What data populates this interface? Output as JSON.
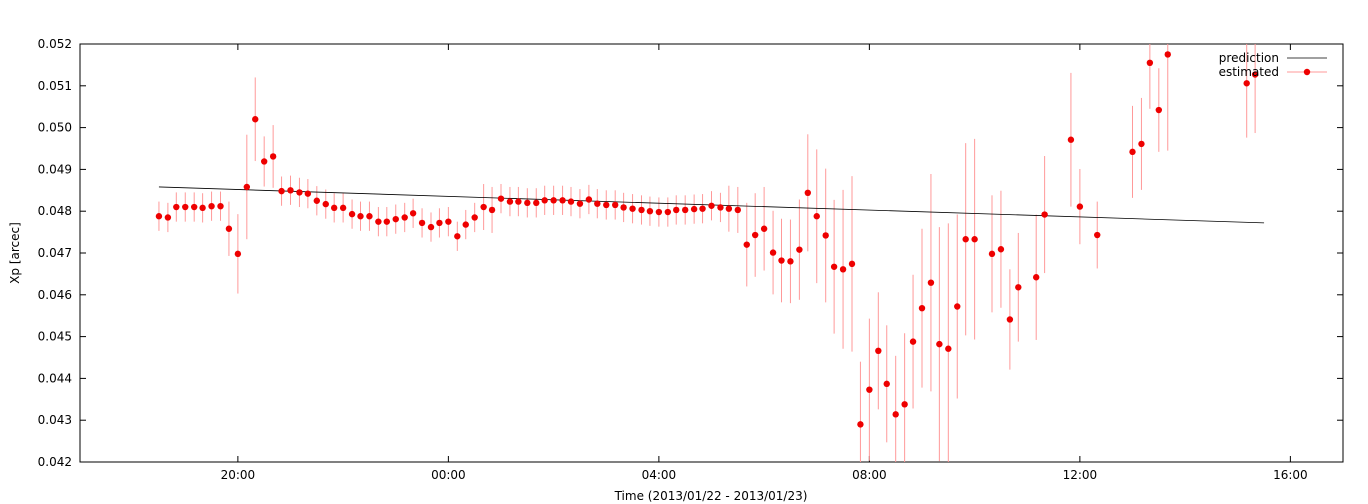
{
  "chart_data": {
    "type": "scatter",
    "title": "",
    "xlabel": "Time (2013/01/22 - 2013/01/23)",
    "ylabel": "Xp [arcec]",
    "x_units": "hours relative to 2013/01/23 00:00",
    "xlim": [
      -7.0,
      17.0
    ],
    "ylim": [
      0.042,
      0.052
    ],
    "x_ticks": [
      {
        "value": -4,
        "label": "20:00"
      },
      {
        "value": 0,
        "label": "00:00"
      },
      {
        "value": 4,
        "label": "04:00"
      },
      {
        "value": 8,
        "label": "08:00"
      },
      {
        "value": 12,
        "label": "12:00"
      },
      {
        "value": 16,
        "label": "16:00"
      }
    ],
    "y_ticks": [
      {
        "value": 0.042,
        "label": "0.042"
      },
      {
        "value": 0.043,
        "label": "0.043"
      },
      {
        "value": 0.044,
        "label": "0.044"
      },
      {
        "value": 0.045,
        "label": "0.045"
      },
      {
        "value": 0.046,
        "label": "0.046"
      },
      {
        "value": 0.047,
        "label": "0.047"
      },
      {
        "value": 0.048,
        "label": "0.048"
      },
      {
        "value": 0.049,
        "label": "0.049"
      },
      {
        "value": 0.05,
        "label": "0.050"
      },
      {
        "value": 0.051,
        "label": "0.051"
      },
      {
        "value": 0.052,
        "label": "0.052"
      }
    ],
    "grid": false,
    "legend": "top-right",
    "series": [
      {
        "name": "prediction",
        "style": "line",
        "color": "#000000",
        "x": [
          -5.5,
          15.5
        ],
        "y": [
          0.04858,
          0.04772
        ]
      },
      {
        "name": "estimated",
        "style": "points-errorbars",
        "color": "#ee0000",
        "errcolor": "#ff9999",
        "points": [
          [
            -5.5,
            0.04788,
            0.00035
          ],
          [
            -5.33,
            0.04785,
            0.00035
          ],
          [
            -5.17,
            0.0481,
            0.00035
          ],
          [
            -5.0,
            0.0481,
            0.00035
          ],
          [
            -4.83,
            0.0481,
            0.00035
          ],
          [
            -4.67,
            0.04808,
            0.00035
          ],
          [
            -4.5,
            0.04812,
            0.00035
          ],
          [
            -4.33,
            0.04812,
            0.00035
          ],
          [
            -4.17,
            0.04758,
            0.00065
          ],
          [
            -4.0,
            0.04698,
            0.00095
          ],
          [
            -3.83,
            0.04858,
            0.00125
          ],
          [
            -3.67,
            0.0502,
            0.001
          ],
          [
            -3.5,
            0.04919,
            0.0006
          ],
          [
            -3.33,
            0.04931,
            0.00075
          ],
          [
            -3.17,
            0.04848,
            0.00035
          ],
          [
            -3.0,
            0.0485,
            0.00035
          ],
          [
            -2.83,
            0.04845,
            0.00035
          ],
          [
            -2.67,
            0.04842,
            0.00035
          ],
          [
            -2.5,
            0.04825,
            0.00035
          ],
          [
            -2.33,
            0.04817,
            0.00035
          ],
          [
            -2.17,
            0.04808,
            0.00035
          ],
          [
            -2.0,
            0.04808,
            0.00035
          ],
          [
            -1.83,
            0.04793,
            0.00035
          ],
          [
            -1.67,
            0.04788,
            0.00035
          ],
          [
            -1.5,
            0.04788,
            0.00035
          ],
          [
            -1.33,
            0.04775,
            0.00035
          ],
          [
            -1.17,
            0.04775,
            0.00035
          ],
          [
            -1.0,
            0.04781,
            0.00035
          ],
          [
            -0.83,
            0.04785,
            0.00035
          ],
          [
            -0.67,
            0.04795,
            0.00035
          ],
          [
            -0.5,
            0.04772,
            0.00035
          ],
          [
            -0.33,
            0.04762,
            0.00035
          ],
          [
            -0.17,
            0.04772,
            0.00035
          ],
          [
            0.0,
            0.04775,
            0.00035
          ],
          [
            0.17,
            0.0474,
            0.00035
          ],
          [
            0.33,
            0.04768,
            0.00035
          ],
          [
            0.5,
            0.04785,
            0.00035
          ],
          [
            0.67,
            0.0481,
            0.00055
          ],
          [
            0.83,
            0.04803,
            0.00055
          ],
          [
            1.0,
            0.0483,
            0.00035
          ],
          [
            1.17,
            0.04823,
            0.00035
          ],
          [
            1.33,
            0.04823,
            0.00035
          ],
          [
            1.5,
            0.0482,
            0.00035
          ],
          [
            1.67,
            0.0482,
            0.00035
          ],
          [
            1.83,
            0.04826,
            0.00035
          ],
          [
            2.0,
            0.04826,
            0.00035
          ],
          [
            2.17,
            0.04826,
            0.00035
          ],
          [
            2.33,
            0.04823,
            0.00035
          ],
          [
            2.5,
            0.04818,
            0.00035
          ],
          [
            2.67,
            0.04828,
            0.00035
          ],
          [
            2.83,
            0.04818,
            0.00035
          ],
          [
            3.0,
            0.04815,
            0.00035
          ],
          [
            3.17,
            0.04815,
            0.00035
          ],
          [
            3.33,
            0.04809,
            0.00035
          ],
          [
            3.5,
            0.04806,
            0.00035
          ],
          [
            3.67,
            0.04803,
            0.00035
          ],
          [
            3.83,
            0.048,
            0.00035
          ],
          [
            4.0,
            0.04798,
            0.00035
          ],
          [
            4.17,
            0.04798,
            0.00035
          ],
          [
            4.33,
            0.04803,
            0.00035
          ],
          [
            4.5,
            0.04803,
            0.00035
          ],
          [
            4.67,
            0.04805,
            0.00035
          ],
          [
            4.83,
            0.04806,
            0.00035
          ],
          [
            5.0,
            0.04813,
            0.00035
          ],
          [
            5.17,
            0.04809,
            0.00035
          ],
          [
            5.33,
            0.04806,
            0.00055
          ],
          [
            5.5,
            0.04803,
            0.00055
          ],
          [
            5.67,
            0.0472,
            0.001
          ],
          [
            5.83,
            0.04743,
            0.001
          ],
          [
            6.0,
            0.04758,
            0.001
          ],
          [
            6.17,
            0.04701,
            0.001
          ],
          [
            6.33,
            0.04682,
            0.001
          ],
          [
            6.5,
            0.0468,
            0.001
          ],
          [
            6.67,
            0.04708,
            0.0012
          ],
          [
            6.83,
            0.04844,
            0.0014
          ],
          [
            7.0,
            0.04788,
            0.0016
          ],
          [
            7.17,
            0.04742,
            0.0016
          ],
          [
            7.33,
            0.04667,
            0.0016
          ],
          [
            7.5,
            0.04661,
            0.0019
          ],
          [
            7.67,
            0.04674,
            0.0021
          ],
          [
            7.83,
            0.0429,
            0.0015
          ],
          [
            8.0,
            0.04373,
            0.0017
          ],
          [
            8.17,
            0.04466,
            0.0014
          ],
          [
            8.33,
            0.04387,
            0.0014
          ],
          [
            8.5,
            0.04314,
            0.0014
          ],
          [
            8.67,
            0.04338,
            0.0017
          ],
          [
            8.83,
            0.04488,
            0.0016
          ],
          [
            9.0,
            0.04568,
            0.0019
          ],
          [
            9.17,
            0.04629,
            0.0026
          ],
          [
            9.33,
            0.04482,
            0.0028
          ],
          [
            9.5,
            0.04471,
            0.003
          ],
          [
            9.67,
            0.04572,
            0.0022
          ],
          [
            9.83,
            0.04733,
            0.0023
          ],
          [
            10.0,
            0.04733,
            0.0024
          ],
          [
            10.33,
            0.04698,
            0.0014
          ],
          [
            10.5,
            0.04709,
            0.0014
          ],
          [
            10.67,
            0.04541,
            0.0012
          ],
          [
            10.83,
            0.04618,
            0.0013
          ],
          [
            11.17,
            0.04642,
            0.0015
          ],
          [
            11.33,
            0.04792,
            0.0014
          ],
          [
            11.83,
            0.04971,
            0.0016
          ],
          [
            12.0,
            0.04811,
            0.0009
          ],
          [
            12.33,
            0.04743,
            0.0008
          ],
          [
            13.0,
            0.04942,
            0.0011
          ],
          [
            13.17,
            0.04961,
            0.0011
          ],
          [
            13.33,
            0.05155,
            0.0011
          ],
          [
            13.5,
            0.05042,
            0.001
          ],
          [
            13.67,
            0.05175,
            0.0023
          ],
          [
            15.17,
            0.05106,
            0.0013
          ],
          [
            15.33,
            0.05127,
            0.0014
          ]
        ]
      }
    ]
  }
}
